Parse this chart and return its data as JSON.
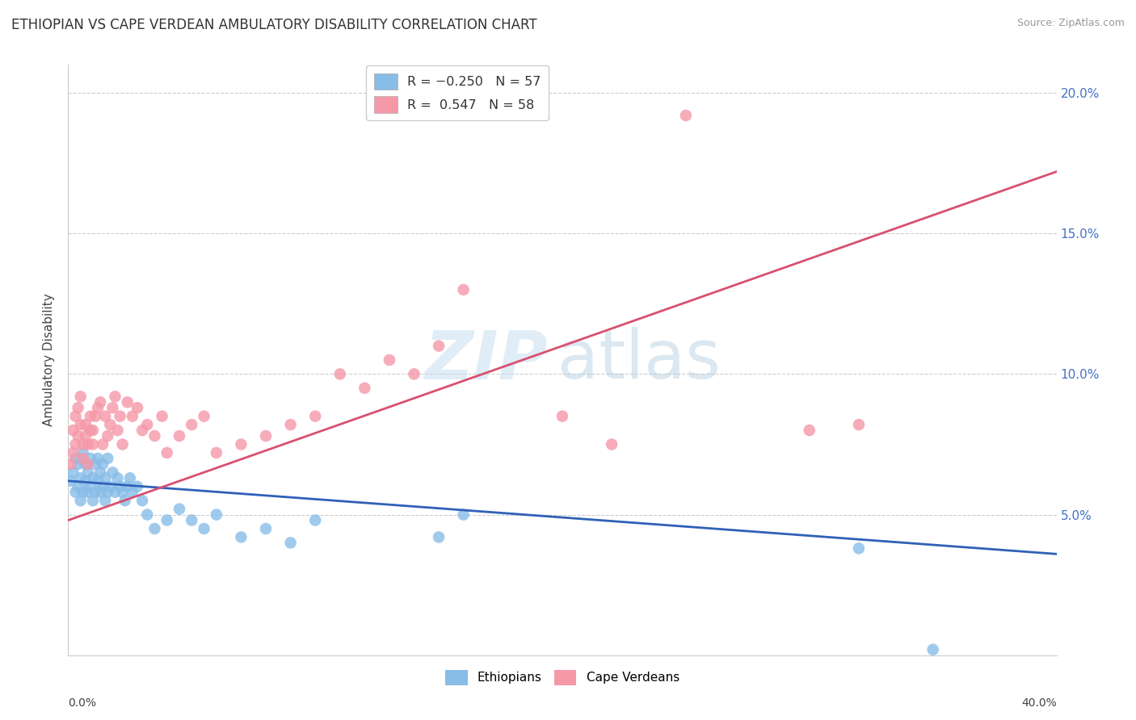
{
  "title": "ETHIOPIAN VS CAPE VERDEAN AMBULATORY DISABILITY CORRELATION CHART",
  "source": "Source: ZipAtlas.com",
  "ylabel": "Ambulatory Disability",
  "xmin": 0.0,
  "xmax": 0.4,
  "ymin": 0.0,
  "ymax": 0.21,
  "ytick_vals": [
    0.05,
    0.1,
    0.15,
    0.2
  ],
  "ytick_labels": [
    "5.0%",
    "10.0%",
    "15.0%",
    "20.0%"
  ],
  "ethiopians_color": "#88bde8",
  "cape_verdeans_color": "#f598a8",
  "ethiopians_line_color": "#3060b8",
  "cape_verdeans_line_color": "#d85070",
  "eth_line_x0": 0.0,
  "eth_line_y0": 0.062,
  "eth_line_x1": 0.4,
  "eth_line_y1": 0.036,
  "cv_line_x0": 0.0,
  "cv_line_y0": 0.048,
  "cv_line_x1": 0.4,
  "cv_line_y1": 0.172,
  "eth_scatter_x": [
    0.001,
    0.002,
    0.003,
    0.003,
    0.004,
    0.004,
    0.005,
    0.005,
    0.006,
    0.006,
    0.007,
    0.007,
    0.008,
    0.008,
    0.009,
    0.009,
    0.01,
    0.01,
    0.011,
    0.011,
    0.012,
    0.012,
    0.013,
    0.013,
    0.014,
    0.014,
    0.015,
    0.015,
    0.016,
    0.016,
    0.017,
    0.018,
    0.019,
    0.02,
    0.021,
    0.022,
    0.023,
    0.024,
    0.025,
    0.026,
    0.028,
    0.03,
    0.032,
    0.035,
    0.04,
    0.045,
    0.05,
    0.055,
    0.06,
    0.07,
    0.08,
    0.09,
    0.1,
    0.15,
    0.16,
    0.32,
    0.35
  ],
  "eth_scatter_y": [
    0.062,
    0.065,
    0.058,
    0.07,
    0.06,
    0.068,
    0.055,
    0.063,
    0.058,
    0.072,
    0.062,
    0.068,
    0.058,
    0.065,
    0.06,
    0.07,
    0.055,
    0.063,
    0.058,
    0.068,
    0.062,
    0.07,
    0.058,
    0.065,
    0.06,
    0.068,
    0.055,
    0.063,
    0.058,
    0.07,
    0.06,
    0.065,
    0.058,
    0.063,
    0.06,
    0.058,
    0.055,
    0.06,
    0.063,
    0.058,
    0.06,
    0.055,
    0.05,
    0.045,
    0.048,
    0.052,
    0.048,
    0.045,
    0.05,
    0.042,
    0.045,
    0.04,
    0.048,
    0.042,
    0.05,
    0.038,
    0.002
  ],
  "cv_scatter_x": [
    0.001,
    0.002,
    0.002,
    0.003,
    0.003,
    0.004,
    0.004,
    0.005,
    0.005,
    0.006,
    0.006,
    0.007,
    0.007,
    0.008,
    0.008,
    0.009,
    0.009,
    0.01,
    0.01,
    0.011,
    0.012,
    0.013,
    0.014,
    0.015,
    0.016,
    0.017,
    0.018,
    0.019,
    0.02,
    0.021,
    0.022,
    0.024,
    0.026,
    0.028,
    0.03,
    0.032,
    0.035,
    0.038,
    0.04,
    0.045,
    0.05,
    0.055,
    0.06,
    0.07,
    0.08,
    0.09,
    0.1,
    0.11,
    0.12,
    0.13,
    0.14,
    0.15,
    0.16,
    0.2,
    0.22,
    0.25,
    0.3,
    0.32
  ],
  "cv_scatter_y": [
    0.068,
    0.072,
    0.08,
    0.075,
    0.085,
    0.078,
    0.088,
    0.082,
    0.092,
    0.07,
    0.075,
    0.078,
    0.082,
    0.068,
    0.075,
    0.08,
    0.085,
    0.075,
    0.08,
    0.085,
    0.088,
    0.09,
    0.075,
    0.085,
    0.078,
    0.082,
    0.088,
    0.092,
    0.08,
    0.085,
    0.075,
    0.09,
    0.085,
    0.088,
    0.08,
    0.082,
    0.078,
    0.085,
    0.072,
    0.078,
    0.082,
    0.085,
    0.072,
    0.075,
    0.078,
    0.082,
    0.085,
    0.1,
    0.095,
    0.105,
    0.1,
    0.11,
    0.13,
    0.085,
    0.075,
    0.192,
    0.08,
    0.082
  ]
}
